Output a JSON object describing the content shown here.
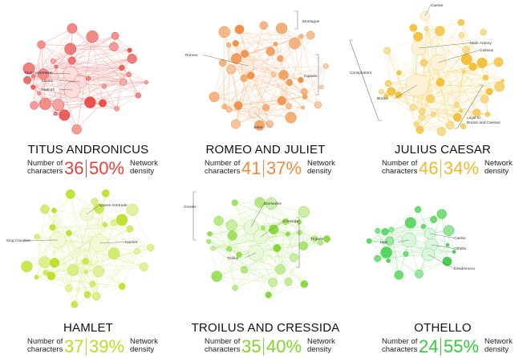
{
  "stat_labels": {
    "characters_1": "Number of",
    "characters_2": "characters",
    "density_1": "Network",
    "density_2": "density"
  },
  "chart_data": [
    {
      "type": "network",
      "title": "TITUS ANDRONICUS",
      "characters": 36,
      "characters_text": "36",
      "density_percent": 50,
      "density_text": "50%",
      "color": "#e8403a",
      "edge_color": "#f2a6a0",
      "node_labels": [
        "Titus Andronicus",
        "Lucius",
        "Marcus"
      ],
      "group_labels": []
    },
    {
      "type": "network",
      "title": "ROMEO AND JULIET",
      "characters": 41,
      "characters_text": "41",
      "density_percent": 37,
      "density_text": "37%",
      "color": "#ef8a3c",
      "edge_color": "#f6c49a",
      "node_labels": [
        "Romeo",
        "Juliet"
      ],
      "group_labels": [
        "Montague",
        "Capulet"
      ]
    },
    {
      "type": "network",
      "title": "JULIUS CAESAR",
      "characters": 46,
      "characters_text": "46",
      "density_percent": 34,
      "density_text": "34%",
      "color": "#f2b925",
      "edge_color": "#f8dc8a",
      "node_labels": [
        "Caesar",
        "Mark Antony",
        "Cassius",
        "Brutus"
      ],
      "group_labels": [
        "Conspirators",
        "Loyal to\nBrutus and Cassius"
      ]
    },
    {
      "type": "network",
      "title": "HAMLET",
      "characters": 37,
      "characters_text": "37",
      "density_percent": 39,
      "density_text": "39%",
      "color": "#b7df1e",
      "edge_color": "#dcef94",
      "node_labels": [
        "Queen Gertrude",
        "King Claudius",
        "Hamlet"
      ],
      "group_labels": []
    },
    {
      "type": "network",
      "title": "TROILUS AND CRESSIDA",
      "characters": 35,
      "characters_text": "35",
      "density_percent": 40,
      "density_text": "40%",
      "color": "#7fd62a",
      "edge_color": "#c4ec98",
      "node_labels": [
        "Diomedes",
        "Cressida",
        "Troilus"
      ],
      "group_labels": [
        "Greeks",
        "Trojans"
      ]
    },
    {
      "type": "network",
      "title": "OTHELLO",
      "characters": 24,
      "characters_text": "24",
      "density_percent": 55,
      "density_text": "55%",
      "color": "#33cc3a",
      "edge_color": "#a6e8a8",
      "node_labels": [
        "Iago",
        "Cassio",
        "Othello",
        "Desdemona"
      ],
      "group_labels": []
    }
  ]
}
